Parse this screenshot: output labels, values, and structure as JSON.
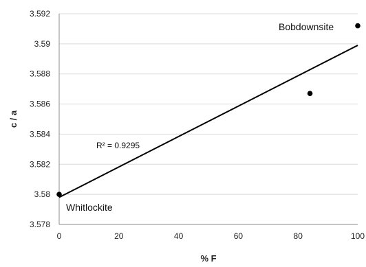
{
  "chart_data": {
    "type": "scatter",
    "xlabel": "% F",
    "ylabel": "c / a",
    "xlim": [
      0,
      100
    ],
    "ylim": [
      3.578,
      3.592
    ],
    "x_ticks": [
      "0",
      "20",
      "40",
      "60",
      "80",
      "100"
    ],
    "y_ticks": [
      "3.578",
      "3.58",
      "3.582",
      "3.584",
      "3.586",
      "3.588",
      "3.59",
      "3.592"
    ],
    "grid": "horizontal",
    "points": [
      {
        "x": 0,
        "y": 3.58
      },
      {
        "x": 84,
        "y": 3.5867
      },
      {
        "x": 100,
        "y": 3.5912
      }
    ],
    "trendline": {
      "x": [
        0,
        100
      ],
      "y": [
        3.5798,
        3.5899
      ]
    },
    "point_labels": [
      "Whitlockite",
      "Bobdownsite"
    ],
    "r_squared_label": "R² = 0.9295",
    "colors": {
      "marker": "#000000",
      "line": "#000000",
      "grid": "#d9d9d9",
      "axis": "#8c8c8c"
    }
  }
}
